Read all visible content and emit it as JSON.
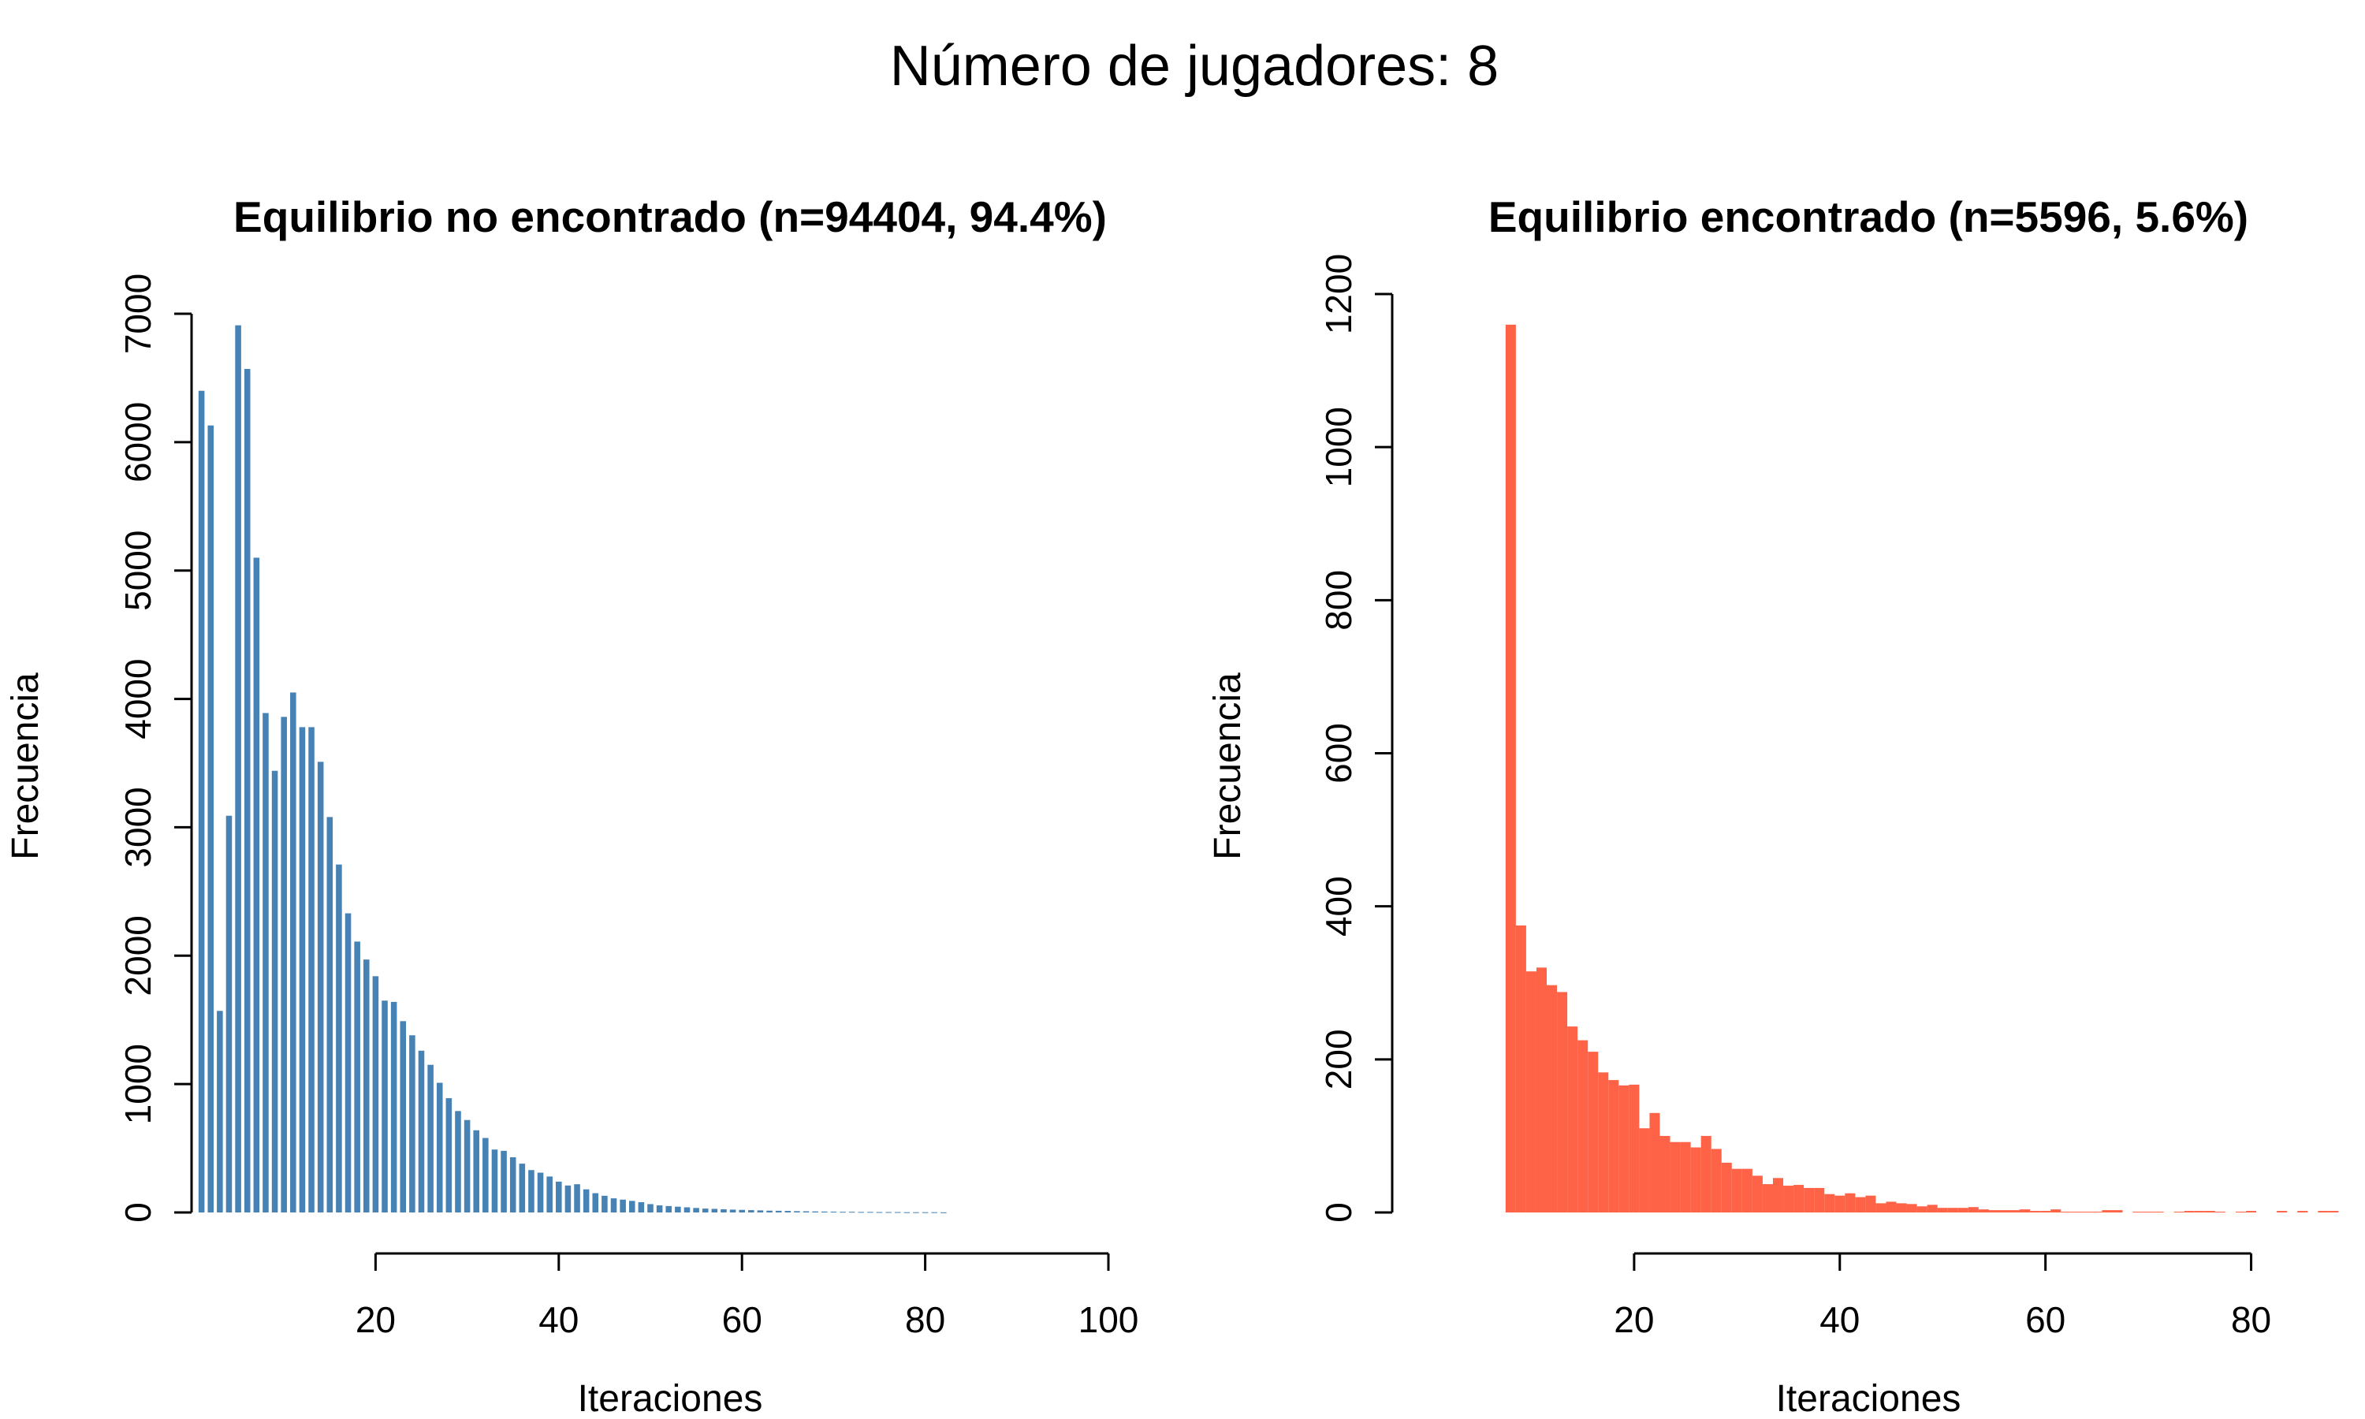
{
  "page": {
    "title": "Número de jugadores: 8"
  },
  "colors": {
    "left": "#4682B4",
    "right": "#FF6347"
  },
  "chart_data": [
    {
      "type": "bar",
      "title": "Equilibrio no encontrado (n=94404, 94.4%)",
      "xlabel": "Iteraciones",
      "ylabel": "Frecuencia",
      "xlim": [
        0,
        100
      ],
      "ylim": [
        0,
        7000
      ],
      "xticks": [
        20,
        40,
        60,
        80,
        100
      ],
      "yticks": [
        0,
        1000,
        2000,
        3000,
        4000,
        5000,
        6000,
        7000
      ],
      "bin_width": 1,
      "bar_fraction": 0.65,
      "x": [
        1,
        2,
        3,
        4,
        5,
        6,
        7,
        8,
        9,
        10,
        11,
        12,
        13,
        14,
        15,
        16,
        17,
        18,
        19,
        20,
        21,
        22,
        23,
        24,
        25,
        26,
        27,
        28,
        29,
        30,
        31,
        32,
        33,
        34,
        35,
        36,
        37,
        38,
        39,
        40,
        41,
        42,
        43,
        44,
        45,
        46,
        47,
        48,
        49,
        50,
        51,
        52,
        53,
        54,
        55,
        56,
        57,
        58,
        59,
        60,
        61,
        62,
        63,
        64,
        65,
        66,
        67,
        68,
        69,
        70,
        71,
        72,
        73,
        74,
        75,
        76,
        77,
        78,
        79,
        80,
        81,
        82
      ],
      "values": [
        6400,
        6130,
        1570,
        3090,
        6910,
        6570,
        5100,
        3890,
        3440,
        3860,
        4050,
        3780,
        3780,
        3510,
        3080,
        2710,
        2330,
        2110,
        1970,
        1840,
        1650,
        1640,
        1490,
        1380,
        1260,
        1150,
        1010,
        890,
        790,
        720,
        640,
        580,
        490,
        480,
        430,
        380,
        330,
        310,
        280,
        240,
        210,
        220,
        180,
        150,
        130,
        110,
        100,
        90,
        80,
        65,
        55,
        50,
        45,
        40,
        35,
        30,
        28,
        25,
        22,
        20,
        18,
        16,
        14,
        13,
        12,
        10,
        9,
        8,
        7,
        6,
        5,
        5,
        4,
        4,
        3,
        3,
        3,
        2,
        2,
        2,
        2,
        1
      ]
    },
    {
      "type": "bar",
      "title": "Equilibrio encontrado (n=5596, 5.6%)",
      "xlabel": "Iteraciones",
      "ylabel": "Frecuencia",
      "xlim": [
        0,
        90
      ],
      "ylim": [
        0,
        1200
      ],
      "xticks": [
        20,
        40,
        60,
        80
      ],
      "yticks": [
        0,
        200,
        400,
        600,
        800,
        1000,
        1200
      ],
      "bin_width": 1,
      "bar_fraction": 1,
      "x": [
        8,
        9,
        10,
        11,
        12,
        13,
        14,
        15,
        16,
        17,
        18,
        19,
        20,
        21,
        22,
        23,
        24,
        25,
        26,
        27,
        28,
        29,
        30,
        31,
        32,
        33,
        34,
        35,
        36,
        37,
        38,
        39,
        40,
        41,
        42,
        43,
        44,
        45,
        46,
        47,
        48,
        49,
        50,
        51,
        52,
        53,
        54,
        55,
        56,
        57,
        58,
        59,
        60,
        61,
        62,
        63,
        64,
        65,
        66,
        67,
        68,
        69,
        70,
        71,
        72,
        73,
        74,
        75,
        76,
        77,
        78,
        79,
        80,
        81,
        82,
        83,
        84,
        85,
        86,
        87,
        88
      ],
      "values": [
        1160,
        375,
        315,
        320,
        297,
        288,
        243,
        225,
        210,
        183,
        173,
        166,
        167,
        110,
        130,
        100,
        92,
        92,
        85,
        100,
        83,
        65,
        57,
        57,
        48,
        37,
        45,
        35,
        36,
        32,
        32,
        24,
        22,
        25,
        20,
        22,
        12,
        14,
        12,
        11,
        8,
        10,
        6,
        6,
        6,
        7,
        4,
        3,
        3,
        3,
        4,
        2,
        2,
        4,
        1,
        1,
        1,
        1,
        3,
        3,
        0,
        1,
        1,
        1,
        0,
        1,
        2,
        2,
        2,
        1,
        0,
        1,
        2,
        0,
        0,
        2,
        0,
        2,
        0,
        2,
        2
      ]
    }
  ]
}
